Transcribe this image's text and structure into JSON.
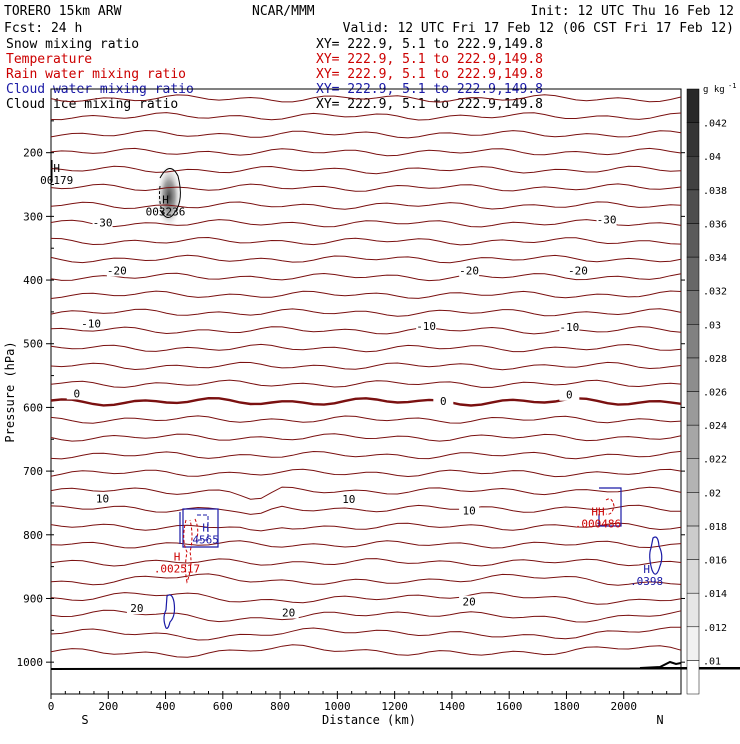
{
  "header": {
    "model": "TORERO  15km ARW",
    "center": "NCAR/MMM",
    "init": "Init: 12 UTC Thu 16 Feb 12",
    "fcst": "Fcst:   24 h",
    "valid": "Valid: 12 UTC Fri 17 Feb 12 (06 CST Fri 17 Feb 12)"
  },
  "legend": [
    {
      "name": "Snow mixing ratio",
      "xy": "XY= 222.9,  5.1 to 222.9,149.8",
      "color": "#000000"
    },
    {
      "name": "Temperature",
      "xy": "XY= 222.9,  5.1 to 222.9,149.8",
      "color": "#cc0000"
    },
    {
      "name": "Rain water mixing ratio",
      "xy": "XY= 222.9,  5.1 to 222.9,149.8",
      "color": "#cc0000"
    },
    {
      "name": "Cloud water mixing ratio",
      "xy": "XY= 222.9,  5.1 to 222.9,149.8",
      "color": "#1a1aa6"
    },
    {
      "name": "Cloud ice mixing ratio",
      "xy": "XY= 222.9,  5.1 to 222.9,149.8",
      "color": "#000000"
    }
  ],
  "chart_data": {
    "type": "cross-section",
    "xlabel": "Distance (km)",
    "ylabel": "Pressure (hPa)",
    "xlim": [
      0,
      2200
    ],
    "ylim": [
      1050,
      100
    ],
    "x_ticks": [
      "0",
      "200",
      "400",
      "600",
      "800",
      "1000",
      "1200",
      "1400",
      "1600",
      "1800",
      "2000"
    ],
    "y_ticks": [
      "200",
      "300",
      "400",
      "500",
      "600",
      "700",
      "800",
      "900",
      "1000"
    ],
    "x_end_labels": {
      "left": "S",
      "right": "N"
    },
    "colorbar": {
      "unit": "g kg",
      "unit_exp": "-1",
      "ticks": [
        ".01",
        ".012",
        ".014",
        ".016",
        ".018",
        ".02",
        ".022",
        ".024",
        ".026",
        ".028",
        ".03",
        ".032",
        ".034",
        ".036",
        ".038",
        ".04",
        ".042"
      ]
    },
    "temperature_labels": [
      {
        "text": "-30",
        "x": 180,
        "p": 310
      },
      {
        "text": "-30",
        "x": 1940,
        "p": 305
      },
      {
        "text": "-20",
        "x": 230,
        "p": 385
      },
      {
        "text": "-20",
        "x": 1460,
        "p": 385
      },
      {
        "text": "-20",
        "x": 1840,
        "p": 385
      },
      {
        "text": "-10",
        "x": 140,
        "p": 468
      },
      {
        "text": "-10",
        "x": 1310,
        "p": 472
      },
      {
        "text": "-10",
        "x": 1810,
        "p": 474
      },
      {
        "text": "0",
        "x": 90,
        "p": 578
      },
      {
        "text": "0",
        "x": 1370,
        "p": 590
      },
      {
        "text": "0",
        "x": 1810,
        "p": 580
      },
      {
        "text": "10",
        "x": 180,
        "p": 743
      },
      {
        "text": "10",
        "x": 1040,
        "p": 744
      },
      {
        "text": "10",
        "x": 1460,
        "p": 762
      },
      {
        "text": "20",
        "x": 300,
        "p": 915
      },
      {
        "text": "20",
        "x": 830,
        "p": 922
      },
      {
        "text": "20",
        "x": 1460,
        "p": 905
      }
    ],
    "extrema": [
      {
        "mark": "H",
        "value": "00179",
        "x": 20,
        "p": 230,
        "color": "#000000"
      },
      {
        "mark": "H",
        "value": "003236",
        "x": 400,
        "p": 280,
        "color": "#000000"
      },
      {
        "mark": "H",
        "value": "4565",
        "x": 540,
        "p": 795,
        "color": "#1a1aa6"
      },
      {
        "mark": "H",
        "value": ".002517",
        "x": 440,
        "p": 840,
        "color": "#cc0000"
      },
      {
        "mark": "HH",
        "value": ".000486",
        "x": 1910,
        "p": 770,
        "color": "#cc0000"
      },
      {
        "mark": "H",
        "value": ".0398",
        "x": 2080,
        "p": 860,
        "color": "#1a1aa6"
      }
    ],
    "colors": {
      "temperature": "#7a1010",
      "zero_isotherm": "#7a1010",
      "rain": "#cc0000",
      "cloud_water": "#1a1aa6",
      "snow": "#000000",
      "terrain": "#000000"
    }
  }
}
